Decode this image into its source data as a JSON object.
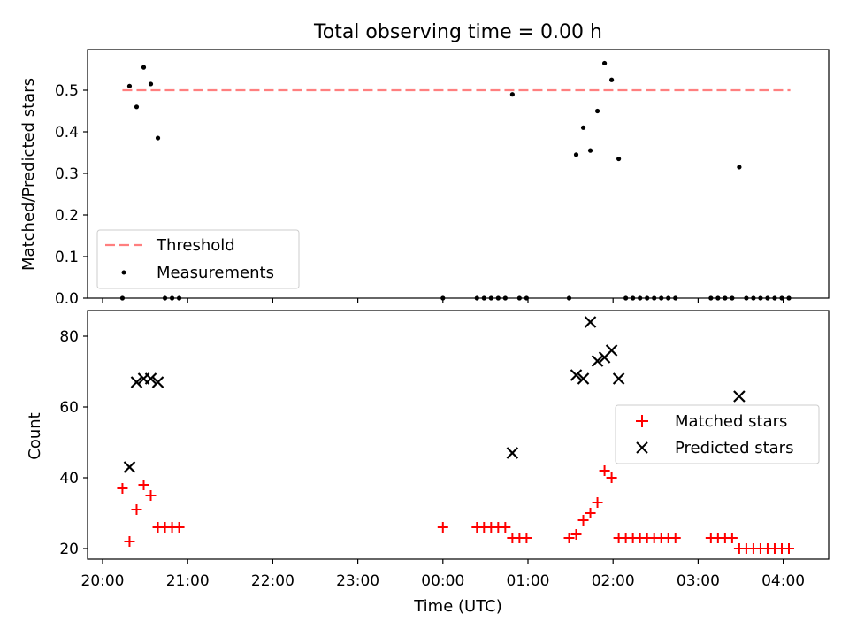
{
  "title": "Total observing time = 0.00 h",
  "colors": {
    "threshold": "#ff7f7f",
    "matched": "#ff0000",
    "predicted": "#000000",
    "measurement": "#000000"
  },
  "chart_data": [
    {
      "type": "scatter",
      "ylabel": "Matched/Predicted stars",
      "ylim": [
        0,
        0.6
      ],
      "yticks": [
        0.0,
        0.1,
        0.2,
        0.3,
        0.4,
        0.5
      ],
      "yticklabels": [
        "0.0",
        "0.1",
        "0.2",
        "0.3",
        "0.4",
        "0.5"
      ],
      "xlim": [
        "20:00",
        "04:30"
      ],
      "threshold": {
        "value": 0.5,
        "x_start": "20:14",
        "x_end": "04:05"
      },
      "legend": {
        "position": "lower-left",
        "labels": [
          "Threshold",
          "Measurements"
        ]
      },
      "series": [
        {
          "name": "Measurements",
          "x": [
            "20:14",
            "20:19",
            "20:24",
            "20:29",
            "20:34",
            "20:39",
            "20:44",
            "20:49",
            "20:54",
            "00:00",
            "00:24",
            "00:29",
            "00:34",
            "00:39",
            "00:44",
            "00:49",
            "00:54",
            "00:59",
            "01:29",
            "01:34",
            "01:39",
            "01:44",
            "01:49",
            "01:54",
            "01:59",
            "02:04",
            "02:09",
            "02:14",
            "02:19",
            "02:24",
            "02:29",
            "02:34",
            "02:39",
            "02:44",
            "03:09",
            "03:14",
            "03:19",
            "03:24",
            "03:29",
            "03:34",
            "03:39",
            "03:44",
            "03:49",
            "03:54",
            "03:59",
            "04:04"
          ],
          "y": [
            0.0,
            0.51,
            0.46,
            0.555,
            0.515,
            0.385,
            0.0,
            0.0,
            0.0,
            0.0,
            0.0,
            0.0,
            0.0,
            0.0,
            0.0,
            0.49,
            0.0,
            0.0,
            0.0,
            0.345,
            0.41,
            0.355,
            0.45,
            0.565,
            0.525,
            0.335,
            0.0,
            0.0,
            0.0,
            0.0,
            0.0,
            0.0,
            0.0,
            0.0,
            0.0,
            0.0,
            0.0,
            0.0,
            0.315,
            0.0,
            0.0,
            0.0,
            0.0,
            0.0,
            0.0,
            0.0
          ]
        }
      ]
    },
    {
      "type": "scatter",
      "ylabel": "Count",
      "xlabel": "Time (UTC)",
      "ylim": [
        17,
        88
      ],
      "yticks": [
        20,
        40,
        60,
        80
      ],
      "yticklabels": [
        "20",
        "40",
        "60",
        "80"
      ],
      "xlim": [
        "20:00",
        "04:30"
      ],
      "xticks": [
        "20:00",
        "21:00",
        "22:00",
        "23:00",
        "00:00",
        "01:00",
        "02:00",
        "03:00",
        "04:00"
      ],
      "legend": {
        "position": "center-right",
        "labels": [
          "Matched stars",
          "Predicted stars"
        ]
      },
      "series": [
        {
          "name": "Matched stars",
          "marker": "+",
          "x": [
            "20:14",
            "20:19",
            "20:24",
            "20:29",
            "20:34",
            "20:39",
            "20:44",
            "20:49",
            "20:54",
            "00:00",
            "00:24",
            "00:29",
            "00:34",
            "00:39",
            "00:44",
            "00:49",
            "00:54",
            "00:59",
            "01:29",
            "01:34",
            "01:39",
            "01:44",
            "01:49",
            "01:54",
            "01:59",
            "02:04",
            "02:09",
            "02:14",
            "02:19",
            "02:24",
            "02:29",
            "02:34",
            "02:39",
            "02:44",
            "03:09",
            "03:14",
            "03:19",
            "03:24",
            "03:29",
            "03:34",
            "03:39",
            "03:44",
            "03:49",
            "03:54",
            "03:59",
            "04:04"
          ],
          "y": [
            37,
            22,
            31,
            38,
            35,
            26,
            26,
            26,
            26,
            26,
            26,
            26,
            26,
            26,
            26,
            23,
            23,
            23,
            23,
            24,
            28,
            30,
            33,
            42,
            40,
            23,
            23,
            23,
            23,
            23,
            23,
            23,
            23,
            23,
            23,
            23,
            23,
            23,
            20,
            20,
            20,
            20,
            20,
            20,
            20,
            20
          ]
        },
        {
          "name": "Predicted stars",
          "marker": "x",
          "x": [
            "20:19",
            "20:24",
            "20:29",
            "20:34",
            "20:39",
            "00:49",
            "01:34",
            "01:39",
            "01:44",
            "01:49",
            "01:54",
            "01:59",
            "02:04",
            "03:29"
          ],
          "y": [
            43,
            67,
            68,
            68,
            67,
            47,
            69,
            68,
            84,
            73,
            74,
            76,
            68,
            63
          ]
        }
      ]
    }
  ]
}
